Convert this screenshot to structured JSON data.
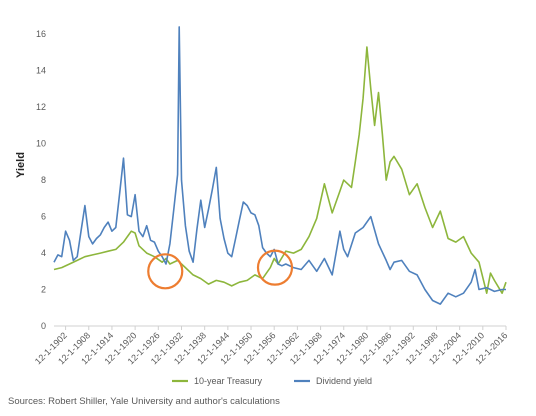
{
  "chart_data": {
    "type": "line",
    "xlabel": "",
    "ylabel": "Yield",
    "ylim": [
      0,
      17
    ],
    "yticks": [
      0,
      2,
      4,
      6,
      8,
      10,
      12,
      14,
      16
    ],
    "xlim": [
      1900,
      2017
    ],
    "xticks": [
      "12-1-1902",
      "12-1-1908",
      "12-1-1914",
      "12-1-1920",
      "12-1-1926",
      "12-1-1932",
      "12-1-1938",
      "12-1-1944",
      "12-1-1950",
      "12-1-1956",
      "12-1-1962",
      "12-1-1968",
      "12-1-1974",
      "12-1-1980",
      "12-1-1986",
      "12-1-1992",
      "12-1-1998",
      "12-1-2004",
      "12-1-2010",
      "12-1-2016"
    ],
    "grid": false,
    "legend_position": "bottom",
    "series": [
      {
        "name": "10-year Treasury",
        "color": "#8DB63C",
        "x": [
          1900,
          1902,
          1904,
          1906,
          1908,
          1910,
          1912,
          1914,
          1916,
          1918,
          1919,
          1920,
          1921,
          1922,
          1924,
          1926,
          1928,
          1929,
          1930,
          1932,
          1934,
          1936,
          1938,
          1940,
          1942,
          1944,
          1946,
          1948,
          1950,
          1952,
          1954,
          1956,
          1957,
          1958,
          1960,
          1962,
          1964,
          1966,
          1968,
          1970,
          1972,
          1974,
          1975,
          1977,
          1978,
          1979,
          1980,
          1981,
          1982,
          1983,
          1984,
          1985,
          1986,
          1987,
          1988,
          1990,
          1992,
          1994,
          1996,
          1998,
          2000,
          2002,
          2004,
          2006,
          2008,
          2010,
          2012,
          2013,
          2014,
          2016,
          2017
        ],
        "values": [
          3.1,
          3.2,
          3.4,
          3.6,
          3.8,
          3.9,
          4.0,
          4.1,
          4.2,
          4.6,
          4.9,
          5.2,
          5.1,
          4.4,
          4.0,
          3.8,
          3.5,
          3.7,
          3.4,
          3.6,
          3.2,
          2.8,
          2.6,
          2.3,
          2.5,
          2.4,
          2.2,
          2.4,
          2.5,
          2.8,
          2.6,
          3.2,
          3.7,
          3.4,
          4.1,
          4.0,
          4.2,
          4.9,
          5.9,
          7.8,
          6.2,
          7.4,
          8.0,
          7.6,
          9.0,
          10.5,
          12.5,
          15.3,
          13.0,
          11.0,
          12.8,
          10.5,
          8.0,
          9.0,
          9.3,
          8.6,
          7.2,
          7.8,
          6.5,
          5.4,
          6.3,
          4.8,
          4.6,
          4.9,
          4.0,
          3.5,
          1.8,
          2.9,
          2.5,
          1.8,
          2.4
        ]
      },
      {
        "name": "Dividend yield",
        "color": "#4F81BD",
        "x": [
          1900,
          1901,
          1902,
          1903,
          1904,
          1905,
          1906,
          1907,
          1908,
          1909,
          1910,
          1911,
          1912,
          1913,
          1914,
          1915,
          1916,
          1917,
          1918,
          1919,
          1920,
          1921,
          1922,
          1923,
          1924,
          1925,
          1926,
          1927,
          1928,
          1929,
          1930,
          1931,
          1932,
          1932.4,
          1933,
          1934,
          1935,
          1936,
          1937,
          1938,
          1939,
          1940,
          1941,
          1942,
          1943,
          1944,
          1945,
          1946,
          1947,
          1948,
          1949,
          1950,
          1951,
          1952,
          1953,
          1954,
          1955,
          1956,
          1957,
          1958,
          1959,
          1960,
          1962,
          1964,
          1966,
          1968,
          1970,
          1972,
          1974,
          1975,
          1976,
          1978,
          1980,
          1982,
          1984,
          1986,
          1987,
          1988,
          1990,
          1992,
          1994,
          1996,
          1998,
          2000,
          2002,
          2004,
          2006,
          2008,
          2009,
          2010,
          2012,
          2014,
          2016,
          2017
        ],
        "values": [
          3.5,
          3.9,
          3.8,
          5.2,
          4.7,
          3.6,
          3.8,
          5.2,
          6.6,
          4.9,
          4.5,
          4.8,
          5.0,
          5.4,
          5.7,
          5.2,
          5.4,
          7.3,
          9.2,
          6.1,
          6.0,
          7.2,
          5.2,
          4.9,
          5.5,
          4.7,
          4.6,
          4.1,
          3.8,
          3.4,
          4.5,
          6.4,
          8.3,
          16.4,
          8.0,
          5.5,
          4.1,
          3.5,
          5.3,
          6.9,
          5.4,
          6.4,
          7.5,
          8.7,
          5.9,
          4.8,
          4.0,
          3.8,
          4.8,
          5.8,
          6.8,
          6.6,
          6.2,
          6.1,
          5.5,
          4.3,
          4.0,
          3.8,
          4.2,
          3.4,
          3.3,
          3.4,
          3.2,
          3.1,
          3.6,
          3.0,
          3.7,
          2.8,
          5.2,
          4.2,
          3.8,
          5.1,
          5.4,
          6.0,
          4.5,
          3.6,
          3.1,
          3.5,
          3.6,
          3.0,
          2.8,
          2.0,
          1.4,
          1.2,
          1.8,
          1.6,
          1.8,
          2.4,
          3.1,
          2.0,
          2.1,
          1.9,
          2.0,
          2.0
        ]
      }
    ],
    "annotations": [
      {
        "type": "circle",
        "x": 1928.8,
        "y": 3.0,
        "color": "#ED7D31"
      },
      {
        "type": "circle",
        "x": 1957.2,
        "y": 3.2,
        "color": "#ED7D31"
      }
    ]
  },
  "footer": {
    "source_note": "Sources: Robert Shiller, Yale University and author's calculations"
  }
}
